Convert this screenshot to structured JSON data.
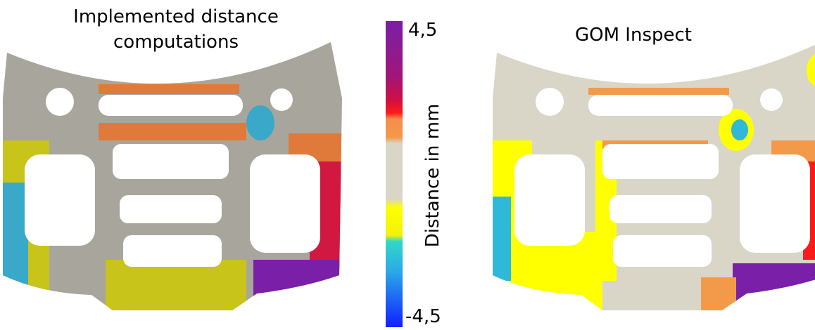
{
  "left_panel": {
    "title": "Implemented distance computations"
  },
  "right_panel": {
    "title": "GOM Inspect"
  },
  "colorbar": {
    "max_label": "4,5",
    "min_label": "-4,5",
    "label": "Distance in mm"
  }
}
